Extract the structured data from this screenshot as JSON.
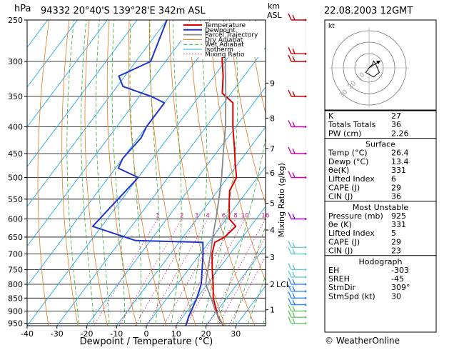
{
  "header": {
    "station_line": "94332  20°40'S  139°28'E  342m  ASL",
    "date": "22.08.2003  12GMT"
  },
  "chart_data": {
    "type": "skew-t",
    "pressure_unit": "hPa",
    "height_unit_top": "km",
    "height_unit_bottom": "ASL",
    "xlabel": "Dewpoint / Temperature (°C)",
    "mixing_ratio_axis_label": "Mixing Ratio (g/kg)",
    "x_range": [
      -40,
      40
    ],
    "x_ticks": [
      -40,
      -30,
      -20,
      -10,
      0,
      10,
      20,
      30
    ],
    "pressure_range": [
      250,
      960
    ],
    "pressure_ticks": [
      250,
      300,
      350,
      400,
      450,
      500,
      550,
      600,
      650,
      700,
      750,
      800,
      850,
      900,
      950
    ],
    "height_ticks": [
      {
        "p": 330,
        "label": "9"
      },
      {
        "p": 385,
        "label": "8"
      },
      {
        "p": 440,
        "label": "7"
      },
      {
        "p": 490,
        "label": "6"
      },
      {
        "p": 560,
        "label": "5"
      },
      {
        "p": 630,
        "label": "4"
      },
      {
        "p": 710,
        "label": "3"
      },
      {
        "p": 800,
        "label": "2"
      },
      {
        "p": 895,
        "label": "1"
      }
    ],
    "lcl": {
      "p": 800,
      "label": "LCL"
    },
    "mixing_ratio_lines": [
      {
        "w": 1,
        "label": "1"
      },
      {
        "w": 2,
        "label": "2"
      },
      {
        "w": 3,
        "label": "3"
      },
      {
        "w": 4,
        "label": "4"
      },
      {
        "w": 6,
        "label": "6"
      },
      {
        "w": 8,
        "label": "8"
      },
      {
        "w": 10,
        "label": "10"
      },
      {
        "w": 16,
        "label": "16"
      },
      {
        "w": 20,
        "label": "20"
      },
      {
        "w": 25,
        "label": "25"
      }
    ],
    "legend": [
      "Temperature",
      "Dewpoint",
      "Parcel Trajectory",
      "Dry Adiabat",
      "Wet Adiabat",
      "Isotherm",
      "Mixing Ratio"
    ],
    "series": [
      {
        "name": "Temperature",
        "color": "#dd0000",
        "points": [
          [
            965,
            26.4
          ],
          [
            925,
            22
          ],
          [
            850,
            15.5
          ],
          [
            800,
            12
          ],
          [
            750,
            8
          ],
          [
            700,
            4
          ],
          [
            665,
            2
          ],
          [
            650,
            4
          ],
          [
            620,
            5
          ],
          [
            600,
            1
          ],
          [
            560,
            -3
          ],
          [
            530,
            -6
          ],
          [
            500,
            -7
          ],
          [
            470,
            -11
          ],
          [
            440,
            -15
          ],
          [
            400,
            -21
          ],
          [
            360,
            -27
          ],
          [
            345,
            -33
          ],
          [
            320,
            -37
          ],
          [
            300,
            -41
          ],
          [
            270,
            -47
          ],
          [
            250,
            -51
          ]
        ]
      },
      {
        "name": "Dewpoint",
        "color": "#2233cc",
        "points": [
          [
            965,
            13.4
          ],
          [
            925,
            12
          ],
          [
            850,
            10
          ],
          [
            800,
            8
          ],
          [
            700,
            1
          ],
          [
            665,
            -2
          ],
          [
            660,
            -25
          ],
          [
            620,
            -43
          ],
          [
            500,
            -40
          ],
          [
            480,
            -49
          ],
          [
            460,
            -50
          ],
          [
            420,
            -49
          ],
          [
            400,
            -50
          ],
          [
            360,
            -50
          ],
          [
            350,
            -56
          ],
          [
            335,
            -68
          ],
          [
            320,
            -72
          ],
          [
            300,
            -65
          ],
          [
            250,
            -70
          ]
        ]
      },
      {
        "name": "Parcel Trajectory",
        "color": "#888888",
        "points": [
          [
            965,
            26.4
          ],
          [
            900,
            19.5
          ],
          [
            850,
            14.8
          ],
          [
            800,
            9.5
          ],
          [
            750,
            6.5
          ],
          [
            700,
            3.5
          ],
          [
            650,
            0
          ],
          [
            600,
            -3.5
          ],
          [
            550,
            -7.5
          ],
          [
            500,
            -12
          ],
          [
            450,
            -17.5
          ],
          [
            400,
            -23.5
          ],
          [
            350,
            -31
          ],
          [
            300,
            -40
          ],
          [
            250,
            -51
          ]
        ]
      }
    ]
  },
  "hodograph": {
    "label": "kt",
    "ring_labels": [
      "10",
      "20",
      "30"
    ],
    "points": [
      [
        0,
        0
      ],
      [
        3,
        3
      ],
      [
        4,
        6
      ],
      [
        6,
        3
      ],
      [
        9,
        -4
      ],
      [
        4,
        -8
      ],
      [
        -3,
        -4
      ],
      [
        0,
        0
      ]
    ]
  },
  "winds": [
    {
      "p": 950,
      "color": "#66cc66"
    },
    {
      "p": 925,
      "color": "#66cc66"
    },
    {
      "p": 900,
      "color": "#66cc66"
    },
    {
      "p": 875,
      "color": "#3388ff"
    },
    {
      "p": 850,
      "color": "#3388ff"
    },
    {
      "p": 825,
      "color": "#3388ff"
    },
    {
      "p": 800,
      "color": "#3388ff"
    },
    {
      "p": 775,
      "color": "#66cccc"
    },
    {
      "p": 750,
      "color": "#66cccc"
    },
    {
      "p": 700,
      "color": "#66cccc"
    },
    {
      "p": 680,
      "color": "#66cccc"
    },
    {
      "p": 600,
      "color": "#9900cc"
    },
    {
      "p": 500,
      "color": "#cc00aa"
    },
    {
      "p": 450,
      "color": "#cc00aa"
    },
    {
      "p": 400,
      "color": "#cc00aa"
    },
    {
      "p": 350,
      "color": "#cc0000"
    },
    {
      "p": 300,
      "color": "#cc0000"
    },
    {
      "p": 290,
      "color": "#cc0000"
    },
    {
      "p": 250,
      "color": "#cc0000"
    }
  ],
  "indices": {
    "top": [
      {
        "label": "K",
        "value": "27"
      },
      {
        "label": "Totals Totals",
        "value": "36"
      },
      {
        "label": "PW (cm)",
        "value": "2.26"
      }
    ],
    "surface": {
      "title": "Surface",
      "rows": [
        {
          "label": "Temp (°C)",
          "value": "26.4"
        },
        {
          "label": "Dewp (°C)",
          "value": "13.4"
        },
        {
          "label": "θe(K)",
          "value": "331"
        },
        {
          "label": "Lifted Index",
          "value": "6"
        },
        {
          "label": "CAPE (J)",
          "value": "29"
        },
        {
          "label": "CIN (J)",
          "value": "36"
        }
      ]
    },
    "most_unstable": {
      "title": "Most Unstable",
      "rows": [
        {
          "label": "Pressure (mb)",
          "value": "925"
        },
        {
          "label": "θe (K)",
          "value": "331"
        },
        {
          "label": "Lifted Index",
          "value": "5"
        },
        {
          "label": "CAPE (J)",
          "value": "29"
        },
        {
          "label": "CIN (J)",
          "value": "23"
        }
      ]
    },
    "hodograph": {
      "title": "Hodograph",
      "rows": [
        {
          "label": "EH",
          "value": "-303"
        },
        {
          "label": "SREH",
          "value": "-45"
        },
        {
          "label": "StmDir",
          "value": "309°"
        },
        {
          "label": "StmSpd (kt)",
          "value": "30"
        }
      ]
    }
  },
  "footer": {
    "copyright": "© WeatherOnline"
  }
}
